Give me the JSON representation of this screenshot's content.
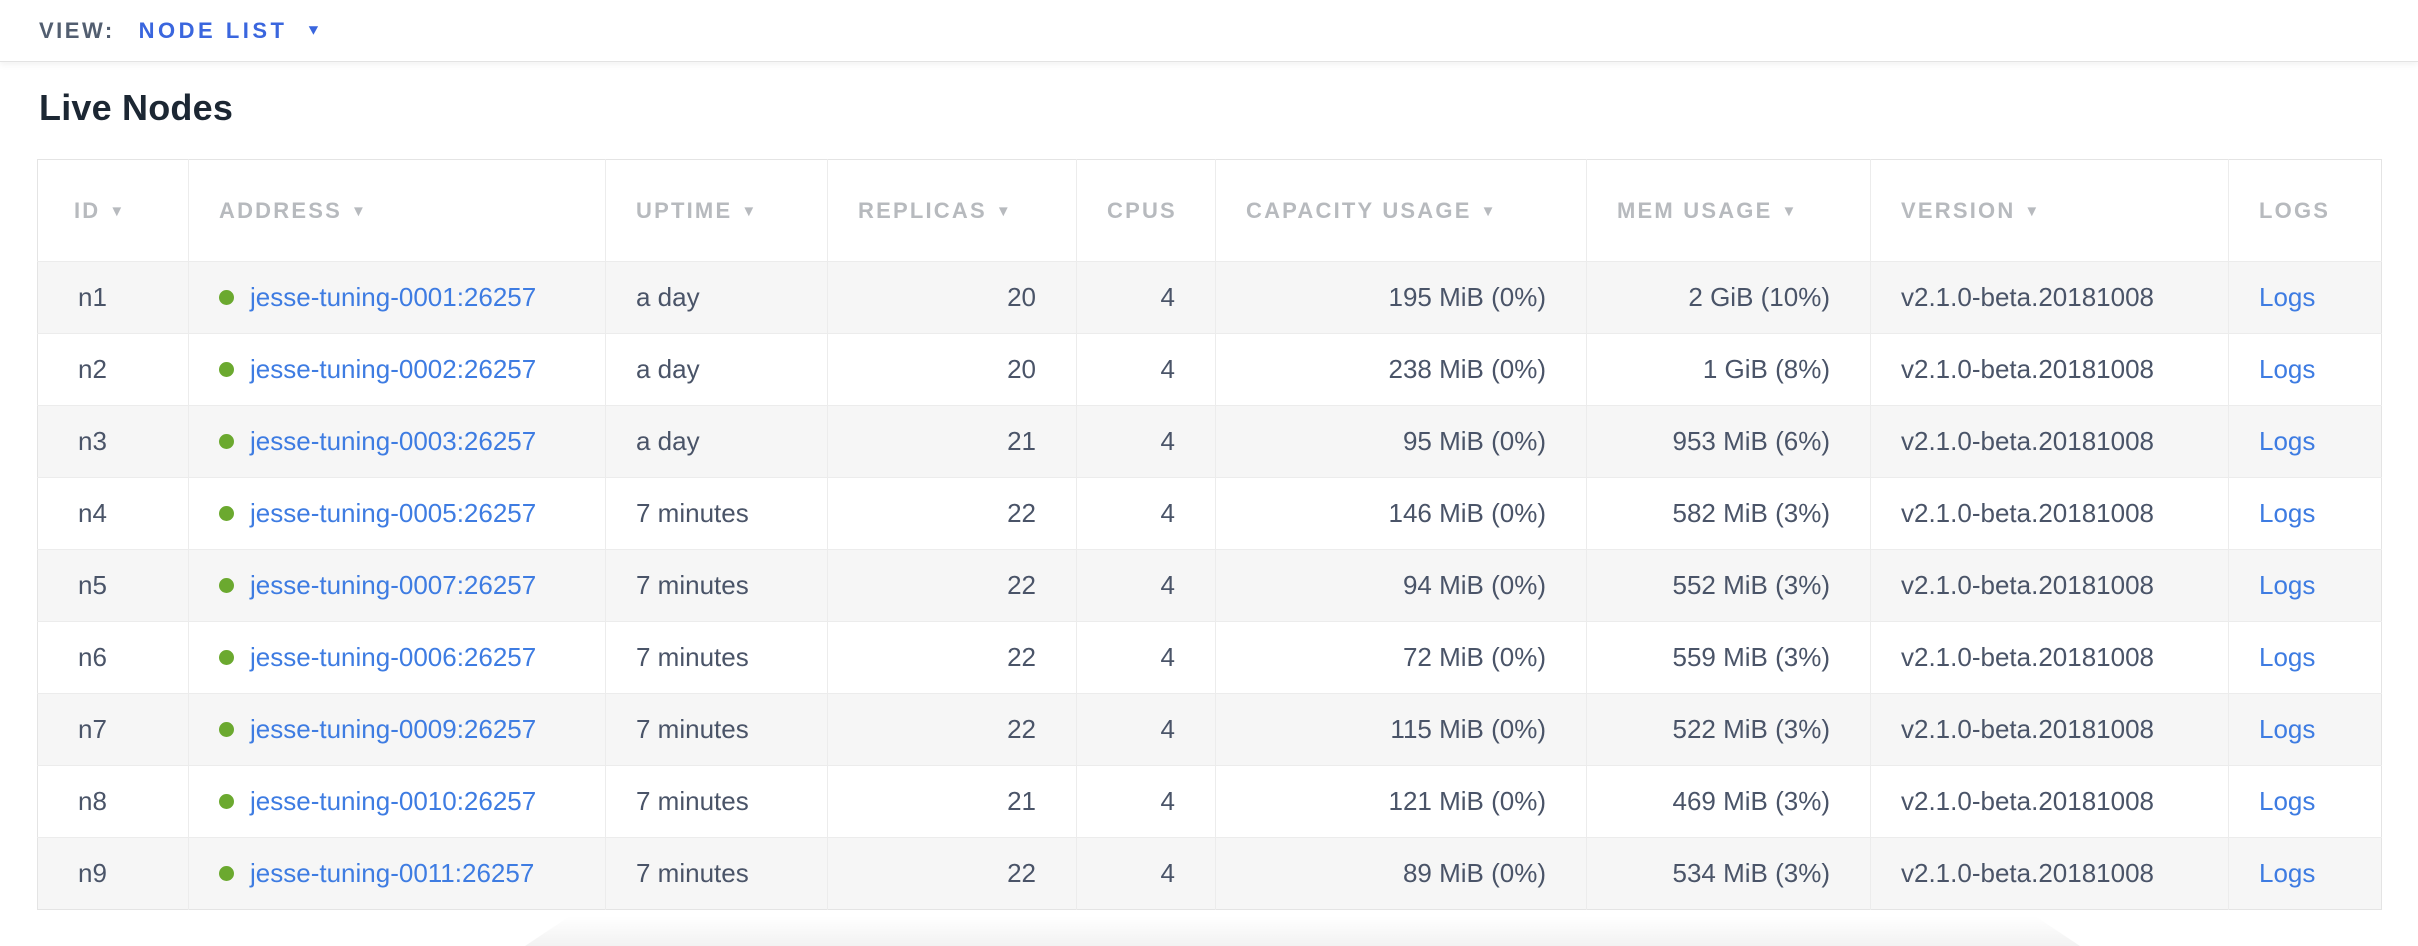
{
  "view_bar": {
    "label": "VIEW:",
    "selected_view": "NODE LIST",
    "caret_icon": "▼"
  },
  "page": {
    "title": "Live Nodes"
  },
  "colors": {
    "link_blue": "#3e7ce2",
    "dropdown_blue": "#3a66de",
    "status_dot_green": "#6ba92f",
    "header_gray": "#b7babe",
    "cell_text": "#4a5468",
    "alt_row_bg": "#f6f6f6"
  },
  "table": {
    "sort_arrow_icon": "▼",
    "columns": [
      {
        "key": "id",
        "label": "ID",
        "sortable": true,
        "align": "left"
      },
      {
        "key": "address",
        "label": "ADDRESS",
        "sortable": true,
        "align": "left"
      },
      {
        "key": "uptime",
        "label": "UPTIME",
        "sortable": true,
        "align": "left"
      },
      {
        "key": "replicas",
        "label": "REPLICAS",
        "sortable": true,
        "align": "right"
      },
      {
        "key": "cpus",
        "label": "CPUS",
        "sortable": false,
        "align": "right"
      },
      {
        "key": "capacity",
        "label": "CAPACITY USAGE",
        "sortable": true,
        "align": "right"
      },
      {
        "key": "mem",
        "label": "MEM USAGE",
        "sortable": true,
        "align": "right"
      },
      {
        "key": "version",
        "label": "VERSION",
        "sortable": true,
        "align": "left"
      },
      {
        "key": "logs",
        "label": "LOGS",
        "sortable": false,
        "align": "left"
      }
    ],
    "rows": [
      {
        "id": "n1",
        "address": "jesse-tuning-0001:26257",
        "uptime": "a day",
        "replicas": "20",
        "cpus": "4",
        "capacity": "195 MiB (0%)",
        "mem": "2 GiB (10%)",
        "version": "v2.1.0-beta.20181008",
        "logs": "Logs"
      },
      {
        "id": "n2",
        "address": "jesse-tuning-0002:26257",
        "uptime": "a day",
        "replicas": "20",
        "cpus": "4",
        "capacity": "238 MiB (0%)",
        "mem": "1 GiB (8%)",
        "version": "v2.1.0-beta.20181008",
        "logs": "Logs"
      },
      {
        "id": "n3",
        "address": "jesse-tuning-0003:26257",
        "uptime": "a day",
        "replicas": "21",
        "cpus": "4",
        "capacity": "95 MiB (0%)",
        "mem": "953 MiB (6%)",
        "version": "v2.1.0-beta.20181008",
        "logs": "Logs"
      },
      {
        "id": "n4",
        "address": "jesse-tuning-0005:26257",
        "uptime": "7 minutes",
        "replicas": "22",
        "cpus": "4",
        "capacity": "146 MiB (0%)",
        "mem": "582 MiB (3%)",
        "version": "v2.1.0-beta.20181008",
        "logs": "Logs"
      },
      {
        "id": "n5",
        "address": "jesse-tuning-0007:26257",
        "uptime": "7 minutes",
        "replicas": "22",
        "cpus": "4",
        "capacity": "94 MiB (0%)",
        "mem": "552 MiB (3%)",
        "version": "v2.1.0-beta.20181008",
        "logs": "Logs"
      },
      {
        "id": "n6",
        "address": "jesse-tuning-0006:26257",
        "uptime": "7 minutes",
        "replicas": "22",
        "cpus": "4",
        "capacity": "72 MiB (0%)",
        "mem": "559 MiB (3%)",
        "version": "v2.1.0-beta.20181008",
        "logs": "Logs"
      },
      {
        "id": "n7",
        "address": "jesse-tuning-0009:26257",
        "uptime": "7 minutes",
        "replicas": "22",
        "cpus": "4",
        "capacity": "115 MiB (0%)",
        "mem": "522 MiB (3%)",
        "version": "v2.1.0-beta.20181008",
        "logs": "Logs"
      },
      {
        "id": "n8",
        "address": "jesse-tuning-0010:26257",
        "uptime": "7 minutes",
        "replicas": "21",
        "cpus": "4",
        "capacity": "121 MiB (0%)",
        "mem": "469 MiB (3%)",
        "version": "v2.1.0-beta.20181008",
        "logs": "Logs"
      },
      {
        "id": "n9",
        "address": "jesse-tuning-0011:26257",
        "uptime": "7 minutes",
        "replicas": "22",
        "cpus": "4",
        "capacity": "89 MiB (0%)",
        "mem": "534 MiB (3%)",
        "version": "v2.1.0-beta.20181008",
        "logs": "Logs"
      }
    ]
  }
}
